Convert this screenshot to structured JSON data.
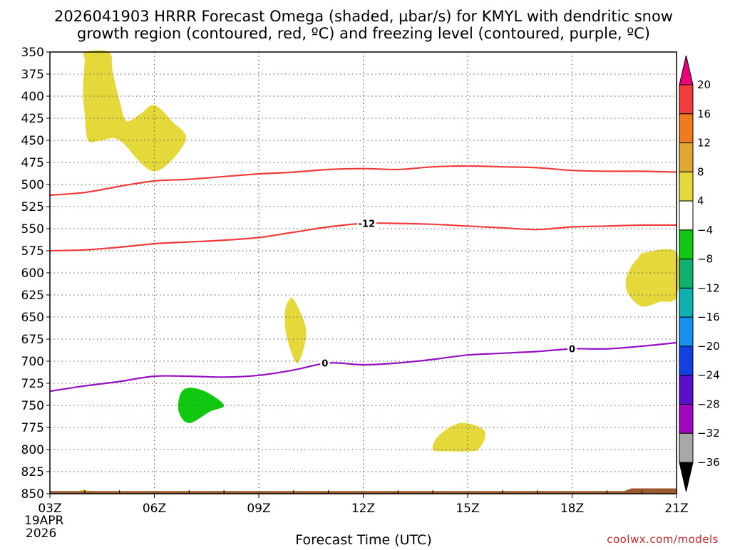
{
  "chart_data": {
    "type": "heatmap",
    "title_line1": "2026041903 HRRR Forecast Omega (shaded, µbar/s) for KMYL with dendritic snow",
    "title_line2": "growth region (contoured, red, ºC) and freezing level (contoured, purple, ºC)",
    "xlabel": "Forecast Time (UTC)",
    "ylabel": "",
    "credit": "coolwx.com/models",
    "x_ticks": [
      "03Z",
      "06Z",
      "09Z",
      "12Z",
      "15Z",
      "18Z",
      "21Z"
    ],
    "x_tick_hours": [
      3,
      6,
      9,
      12,
      15,
      18,
      21
    ],
    "x_date_line1": "19APR",
    "x_date_line2": "2026",
    "xlim": [
      3,
      21
    ],
    "y_ticks": [
      350,
      375,
      400,
      425,
      450,
      475,
      500,
      525,
      550,
      575,
      600,
      625,
      650,
      675,
      700,
      725,
      750,
      775,
      800,
      825,
      850
    ],
    "ylim": [
      350,
      850
    ],
    "y_inverted": true,
    "grid": true,
    "colorbar": {
      "labels": [
        "20",
        "16",
        "12",
        "8",
        "4",
        "−4",
        "−8",
        "−12",
        "−16",
        "−20",
        "−24",
        "−28",
        "−32",
        "−36"
      ],
      "colors": [
        "#e8007a",
        "#f03e3e",
        "#f07a1e",
        "#e0a830",
        "#e4d83a",
        "#ffffff",
        "#10c810",
        "#10b070",
        "#10b0b0",
        "#1890f0",
        "#1040e0",
        "#5810c8",
        "#a008c0",
        "#a8a8a8",
        "#000000"
      ]
    },
    "contours": [
      {
        "name": "",
        "color": "#f03c3c",
        "label": "",
        "x": [
          3,
          4,
          5,
          6,
          7,
          8,
          9,
          10,
          11,
          12,
          13,
          14,
          15,
          16,
          17,
          18,
          19,
          20,
          21
        ],
        "y": [
          512,
          509,
          502,
          496,
          494,
          491,
          488,
          486,
          483,
          482,
          483,
          480,
          479,
          480,
          481,
          484,
          485,
          485,
          486
        ]
      },
      {
        "name": "",
        "color": "#f03c3c",
        "label": "-12",
        "label_x": 12.1,
        "label_y": 544,
        "x": [
          3,
          4,
          5,
          6,
          7,
          8,
          9,
          10,
          11,
          12,
          13,
          14,
          15,
          16,
          17,
          18,
          19,
          20,
          21
        ],
        "y": [
          575,
          574,
          571,
          567,
          565,
          563,
          560,
          554,
          548,
          544,
          544,
          545,
          547,
          549,
          551,
          548,
          547,
          546,
          546
        ]
      },
      {
        "name": "",
        "color": "#9410c0",
        "label": "0",
        "label_x": 10.9,
        "label_y": 702,
        "label2": "0",
        "label2_x": 18.0,
        "label2_y": 686,
        "x": [
          3,
          4,
          5,
          6,
          7,
          8,
          9,
          10,
          11,
          12,
          13,
          14,
          15,
          16,
          17,
          18,
          19,
          20,
          21
        ],
        "y": [
          734,
          728,
          723,
          717,
          717,
          718,
          716,
          710,
          702,
          704,
          702,
          698,
          693,
          691,
          689,
          686,
          686,
          683,
          679
        ]
      }
    ],
    "filled_regions": [
      {
        "value_class": "4 to 8",
        "color": "#e4d83a",
        "points": [
          [
            4.0,
            350
          ],
          [
            4.7,
            350
          ],
          [
            4.8,
            372
          ],
          [
            5.0,
            405
          ],
          [
            5.2,
            428
          ],
          [
            5.6,
            420
          ],
          [
            6.0,
            410
          ],
          [
            6.5,
            428
          ],
          [
            6.9,
            450
          ],
          [
            6.0,
            485
          ],
          [
            5.0,
            450
          ],
          [
            4.5,
            450
          ],
          [
            4.1,
            450
          ],
          [
            4.0,
            420
          ],
          [
            3.95,
            395
          ],
          [
            4.0,
            360
          ]
        ]
      },
      {
        "value_class": "4 to 8",
        "color": "#e4d83a",
        "points": [
          [
            10.0,
            630
          ],
          [
            10.3,
            655
          ],
          [
            10.35,
            675
          ],
          [
            10.1,
            702
          ],
          [
            9.8,
            672
          ],
          [
            9.75,
            645
          ],
          [
            9.85,
            632
          ]
        ]
      },
      {
        "value_class": "4 to 8",
        "color": "#e4d83a",
        "points": [
          [
            14.0,
            800
          ],
          [
            14.2,
            783
          ],
          [
            14.8,
            770
          ],
          [
            15.4,
            776
          ],
          [
            15.5,
            786
          ],
          [
            15.3,
            800
          ],
          [
            15.0,
            802
          ],
          [
            14.5,
            802
          ]
        ]
      },
      {
        "value_class": "4 to 8",
        "color": "#e4d83a",
        "points": [
          [
            19.7,
            593
          ],
          [
            19.9,
            583
          ],
          [
            20.1,
            577
          ],
          [
            21.0,
            577
          ],
          [
            21.0,
            627
          ],
          [
            20.5,
            633
          ],
          [
            20.0,
            638
          ],
          [
            19.6,
            623
          ],
          [
            19.55,
            607
          ]
        ]
      },
      {
        "value_class": "-8 to -4",
        "color": "#10c810",
        "points": [
          [
            6.75,
            737
          ],
          [
            7.0,
            730
          ],
          [
            7.5,
            735
          ],
          [
            8.0,
            750
          ],
          [
            7.6,
            757
          ],
          [
            7.0,
            770
          ],
          [
            6.7,
            757
          ]
        ]
      },
      {
        "value_class": "4 to 8",
        "color": "#e4d83a",
        "points": [
          [
            3.7,
            850
          ],
          [
            3.9,
            846
          ],
          [
            4.2,
            847
          ],
          [
            4.3,
            850
          ]
        ]
      }
    ],
    "terrain": {
      "color": "#9c5a2e",
      "top_y": 847,
      "rise_x": 19.5,
      "rise_y": 844
    }
  }
}
